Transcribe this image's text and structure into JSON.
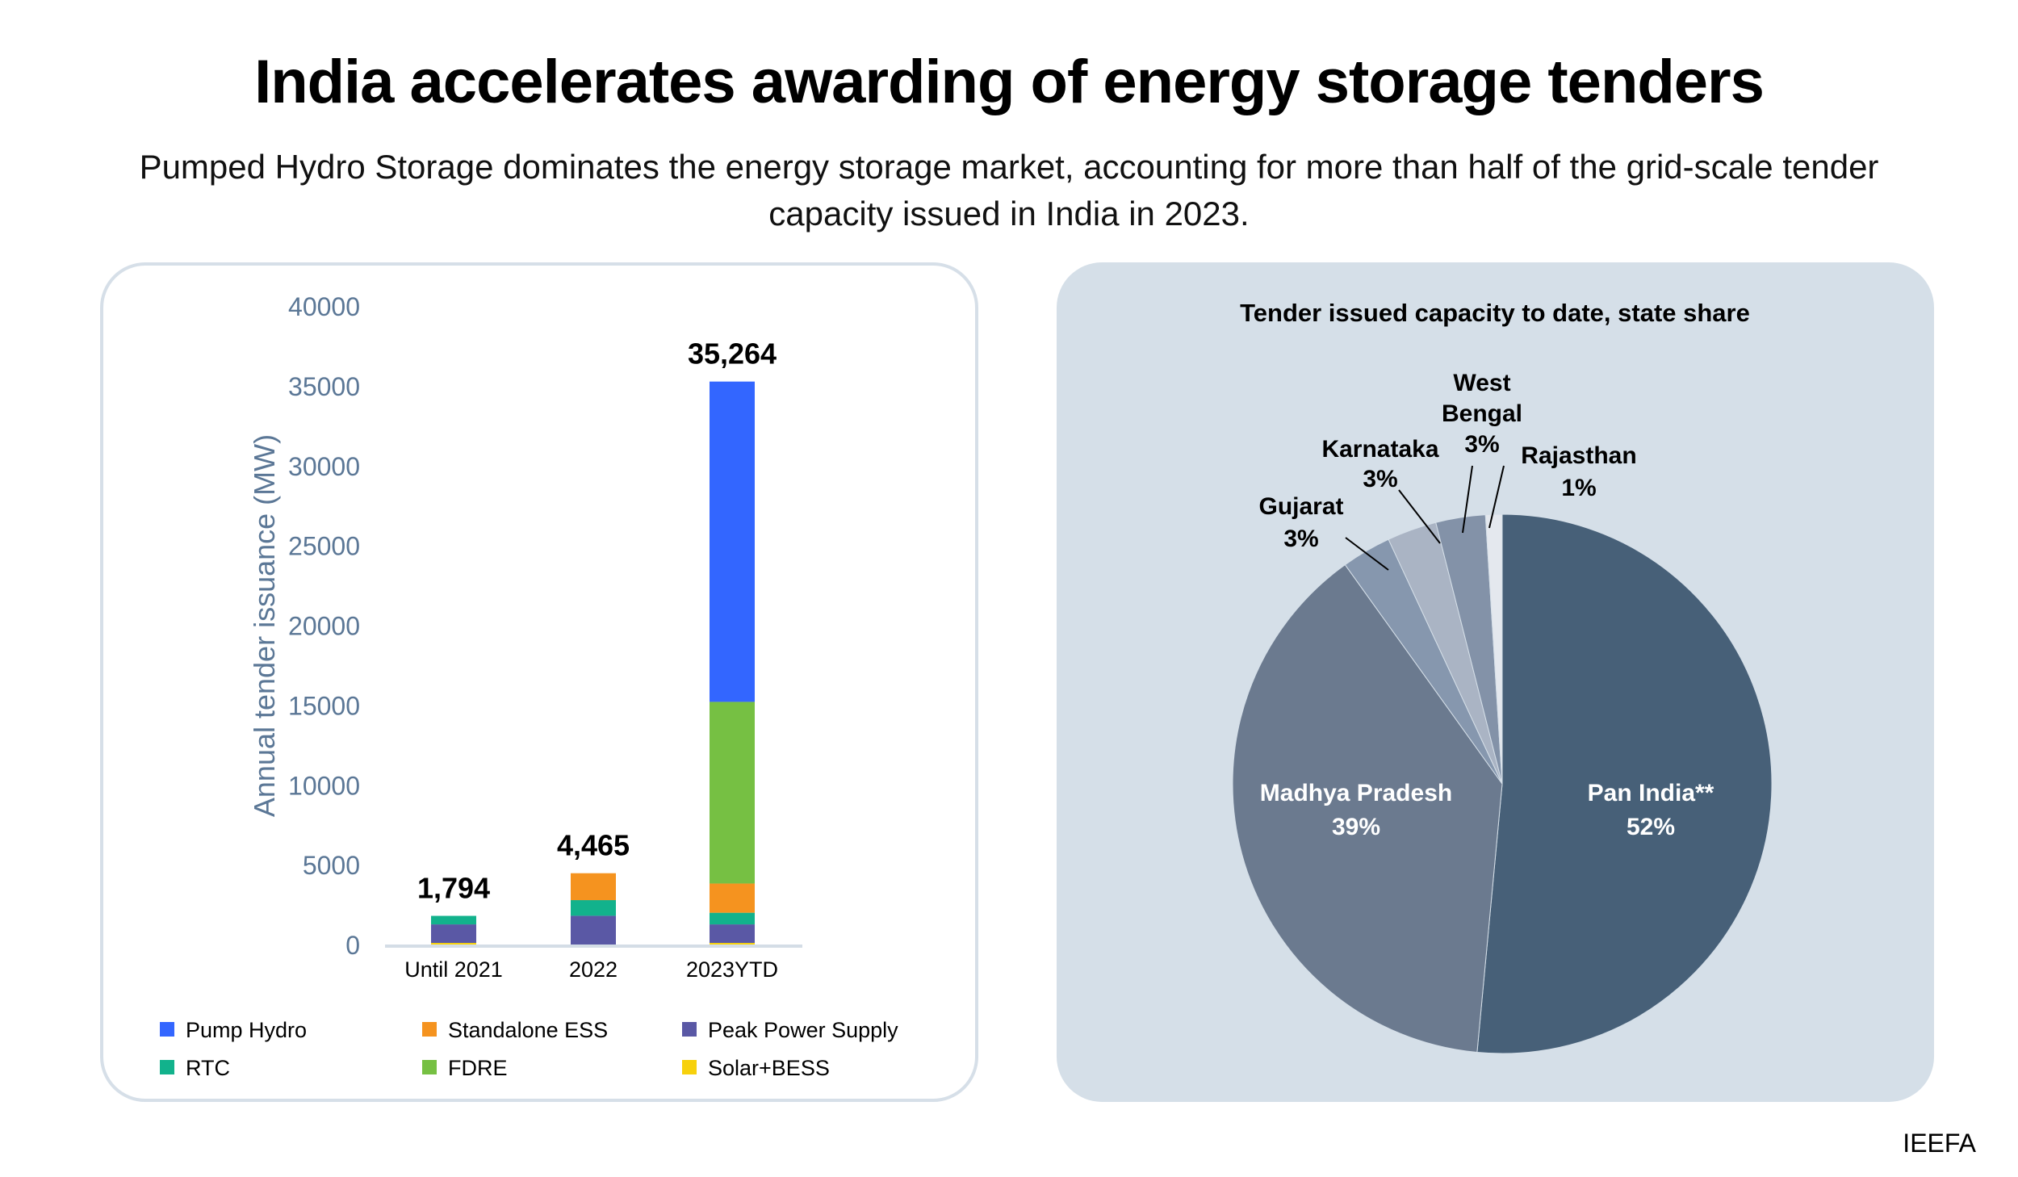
{
  "title": "India accelerates awarding of energy storage tenders",
  "subtitle": "Pumped Hydro Storage dominates the energy storage market, accounting for more than half of the grid-scale tender capacity issued in India in 2023.",
  "source": "IEEFA",
  "chart_data": [
    {
      "type": "bar",
      "stacked": true,
      "ylabel": "Annual tender issuance (MW)",
      "ylim": [
        0,
        40000
      ],
      "yticks": [
        0,
        5000,
        10000,
        15000,
        20000,
        25000,
        30000,
        35000,
        40000
      ],
      "categories": [
        "Until 2021",
        "2022",
        "2023YTD"
      ],
      "totals": [
        "1,794",
        "4,465",
        "35,264"
      ],
      "legend": "bottom",
      "grid": false,
      "series": [
        {
          "name": "Solar+BESS",
          "color": "#f7d10c",
          "values": [
            100,
            0,
            100
          ]
        },
        {
          "name": "Peak Power Supply",
          "color": "#5a58a5",
          "values": [
            1160,
            1800,
            1160
          ]
        },
        {
          "name": "RTC",
          "color": "#12b28c",
          "values": [
            534,
            980,
            730
          ]
        },
        {
          "name": "Standalone ESS",
          "color": "#f5931f",
          "values": [
            0,
            1685,
            1830
          ]
        },
        {
          "name": "FDRE",
          "color": "#76c043",
          "values": [
            0,
            0,
            11380
          ]
        },
        {
          "name": "Pump Hydro",
          "color": "#3366ff",
          "values": [
            0,
            0,
            20064
          ]
        }
      ],
      "legend_order": [
        "Pump Hydro",
        "Standalone ESS",
        "Peak Power Supply",
        "RTC",
        "FDRE",
        "Solar+BESS"
      ]
    },
    {
      "type": "pie",
      "title": "Tender issued capacity to date, state share",
      "slices": [
        {
          "label": "Pan India**",
          "value": 52,
          "text": "52%",
          "color": "#476078"
        },
        {
          "label": "Madhya Pradesh",
          "value": 39,
          "text": "39%",
          "color": "#6b7a8f"
        },
        {
          "label": "Gujarat",
          "value": 3,
          "text": "3%",
          "color": "#8697ae"
        },
        {
          "label": "Karnataka",
          "value": 3,
          "text": "3%",
          "color": "#aab4c4"
        },
        {
          "label": "West Bengal",
          "value": 3,
          "text": "3%",
          "color": "#8392a8"
        },
        {
          "label": "Rajasthan",
          "value": 1,
          "text": "1%",
          "color": "#e4e8ee"
        }
      ]
    }
  ]
}
